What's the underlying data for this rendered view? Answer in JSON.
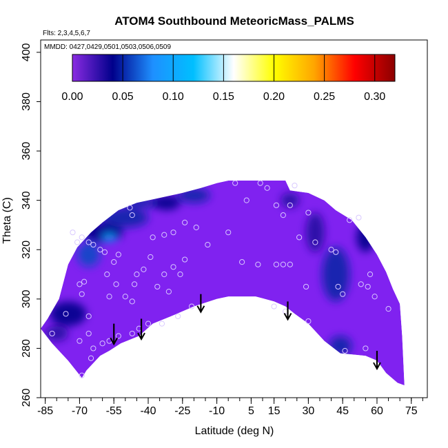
{
  "chart_data": {
    "type": "heatmap",
    "title": "ATOM4 Southbound MeteoricMass_PALMS",
    "subtitle_flights": "Flts: 2,3,4,5,6,7",
    "subtitle_dates": "MMDD: 0427,0429,0501,0503,0506,0509",
    "xlabel": "Latitude (deg N)",
    "ylabel": "Theta (C)",
    "xlim": [
      -87,
      82
    ],
    "ylim": [
      260,
      405
    ],
    "x_ticks": [
      -85,
      -70,
      -55,
      -40,
      -25,
      -10,
      5,
      15,
      30,
      45,
      60,
      75
    ],
    "x_minor_step": 5,
    "y_ticks": [
      260,
      280,
      300,
      320,
      340,
      360,
      380,
      400
    ],
    "colorbar": {
      "range": [
        0,
        0.32
      ],
      "ticks": [
        0.0,
        0.05,
        0.1,
        0.15,
        0.2,
        0.25,
        0.3
      ],
      "tick_labels": [
        "0.00",
        "0.05",
        "0.10",
        "0.15",
        "0.20",
        "0.25",
        "0.30"
      ],
      "colors": [
        "#8a2be2",
        "#00008b",
        "#1e90ff",
        "#00bfff",
        "#ffffff",
        "#ffff00",
        "#ffa500",
        "#ff0000",
        "#8b0000"
      ]
    },
    "field_base_color": "#8022f0",
    "envelope_top": [
      [
        -87,
        288
      ],
      [
        -84,
        292
      ],
      [
        -79,
        300
      ],
      [
        -75,
        314
      ],
      [
        -71,
        321
      ],
      [
        -65,
        327
      ],
      [
        -60,
        331
      ],
      [
        -53,
        336
      ],
      [
        -45,
        339
      ],
      [
        -35,
        341
      ],
      [
        -25,
        343
      ],
      [
        -17,
        345
      ],
      [
        -10,
        347
      ],
      [
        -5,
        348
      ],
      [
        5,
        348
      ],
      [
        20,
        348
      ],
      [
        22,
        344
      ],
      [
        30,
        343
      ],
      [
        37,
        340
      ],
      [
        42,
        336
      ],
      [
        49,
        332
      ],
      [
        55,
        325
      ],
      [
        60,
        318
      ],
      [
        64,
        311
      ],
      [
        67,
        304
      ],
      [
        70,
        298
      ],
      [
        71,
        285
      ],
      [
        72,
        265
      ]
    ],
    "envelope_bottom": [
      [
        72,
        265
      ],
      [
        69,
        266
      ],
      [
        64,
        270
      ],
      [
        60,
        275
      ],
      [
        55,
        277
      ],
      [
        44,
        278
      ],
      [
        37,
        283
      ],
      [
        30,
        290
      ],
      [
        24,
        294
      ],
      [
        20,
        297
      ],
      [
        15,
        299
      ],
      [
        7,
        301
      ],
      [
        -5,
        301
      ],
      [
        -10,
        300
      ],
      [
        -20,
        297
      ],
      [
        -30,
        293
      ],
      [
        -38,
        290
      ],
      [
        -44,
        285
      ],
      [
        -52,
        282
      ],
      [
        -57,
        279
      ],
      [
        -61,
        277
      ],
      [
        -67,
        271
      ],
      [
        -69,
        268
      ],
      [
        -75,
        275
      ],
      [
        -78,
        278
      ],
      [
        -82,
        282
      ],
      [
        -87,
        288
      ]
    ],
    "blobs": [
      {
        "lat": -75,
        "theta": 294,
        "rx": 8,
        "ry": 5,
        "value": 0.04
      },
      {
        "lat": -60,
        "theta": 327,
        "rx": 9,
        "ry": 4,
        "value": 0.04
      },
      {
        "lat": -50,
        "theta": 333,
        "rx": 10,
        "ry": 4,
        "value": 0.05
      },
      {
        "lat": -66,
        "theta": 318,
        "rx": 5,
        "ry": 5,
        "value": 0.06
      },
      {
        "lat": -57,
        "theta": 325,
        "rx": 3,
        "ry": 1.5,
        "value": 0.1
      },
      {
        "lat": -43,
        "theta": 339,
        "rx": 8,
        "ry": 2,
        "value": 0.05
      },
      {
        "lat": -32,
        "theta": 339,
        "rx": 6,
        "ry": 3,
        "value": 0.04
      },
      {
        "lat": -20,
        "theta": 342,
        "rx": 7,
        "ry": 3,
        "value": 0.05
      },
      {
        "lat": 33,
        "theta": 327,
        "rx": 4,
        "ry": 8,
        "value": 0.03
      },
      {
        "lat": 42,
        "theta": 310,
        "rx": 6,
        "ry": 11,
        "value": 0.05
      },
      {
        "lat": 44,
        "theta": 281,
        "rx": 5,
        "ry": 4,
        "value": 0.05
      },
      {
        "lat": 55,
        "theta": 325,
        "rx": 4,
        "ry": 6,
        "value": 0.04
      },
      {
        "lat": 22,
        "theta": 340,
        "rx": 4,
        "ry": 3,
        "value": 0.03
      },
      {
        "lat": -80,
        "theta": 286,
        "rx": 5,
        "ry": 3,
        "value": 0.03
      }
    ],
    "sample_points": [
      [
        -82,
        286
      ],
      [
        -76,
        294
      ],
      [
        -70,
        306
      ],
      [
        -68,
        307
      ],
      [
        -69,
        302
      ],
      [
        -66,
        293
      ],
      [
        -66,
        286
      ],
      [
        -70,
        283
      ],
      [
        -65,
        276
      ],
      [
        -64,
        280
      ],
      [
        -69,
        269
      ],
      [
        -60,
        282
      ],
      [
        -57,
        283
      ],
      [
        -53,
        285
      ],
      [
        -47,
        286
      ],
      [
        -44,
        288
      ],
      [
        -40,
        290
      ],
      [
        -34,
        290
      ],
      [
        -27,
        293
      ],
      [
        -21,
        297
      ],
      [
        -58,
        310
      ],
      [
        -55,
        315
      ],
      [
        -53,
        318
      ],
      [
        -59,
        319
      ],
      [
        -61,
        320
      ],
      [
        -57,
        301
      ],
      [
        -54,
        306
      ],
      [
        -50,
        301
      ],
      [
        -47,
        299
      ],
      [
        -46,
        306
      ],
      [
        -45,
        310
      ],
      [
        -42,
        312
      ],
      [
        -39,
        317
      ],
      [
        -36,
        305
      ],
      [
        -33,
        310
      ],
      [
        -29,
        313
      ],
      [
        -24,
        316
      ],
      [
        -26,
        310
      ],
      [
        -31,
        303
      ],
      [
        -38,
        325
      ],
      [
        -33,
        326
      ],
      [
        -29,
        327
      ],
      [
        -24,
        331
      ],
      [
        -19,
        329
      ],
      [
        -14,
        322
      ],
      [
        -47,
        334
      ],
      [
        -48,
        337
      ],
      [
        -73,
        327
      ],
      [
        -71,
        323
      ],
      [
        -69,
        325
      ],
      [
        -66,
        323
      ],
      [
        -64,
        322
      ],
      [
        3,
        340
      ],
      [
        9,
        347
      ],
      [
        12,
        345
      ],
      [
        16,
        338
      ],
      [
        19,
        334
      ],
      [
        22,
        338
      ],
      [
        24,
        346
      ],
      [
        30,
        335
      ],
      [
        33,
        323
      ],
      [
        26,
        325
      ],
      [
        -5,
        327
      ],
      [
        -2,
        347
      ],
      [
        1,
        315
      ],
      [
        8,
        314
      ],
      [
        16,
        314
      ],
      [
        19,
        314
      ],
      [
        22,
        314
      ],
      [
        29,
        305
      ],
      [
        30,
        291
      ],
      [
        15,
        297
      ],
      [
        20,
        295
      ],
      [
        40,
        320
      ],
      [
        42,
        319
      ],
      [
        43,
        305
      ],
      [
        45,
        302
      ],
      [
        48,
        332
      ],
      [
        52,
        333
      ],
      [
        53,
        306
      ],
      [
        56,
        305
      ],
      [
        57,
        310
      ],
      [
        59,
        301
      ],
      [
        65,
        296
      ],
      [
        46,
        279
      ],
      [
        55,
        280
      ]
    ],
    "arrows": [
      {
        "lat": -55,
        "theta": 290,
        "length": 8
      },
      {
        "lat": -43,
        "theta": 292,
        "length": 8
      },
      {
        "lat": -17,
        "theta": 302,
        "length": 7
      },
      {
        "lat": 21,
        "theta": 299,
        "length": 7
      },
      {
        "lat": 60,
        "theta": 279,
        "length": 7
      }
    ]
  }
}
